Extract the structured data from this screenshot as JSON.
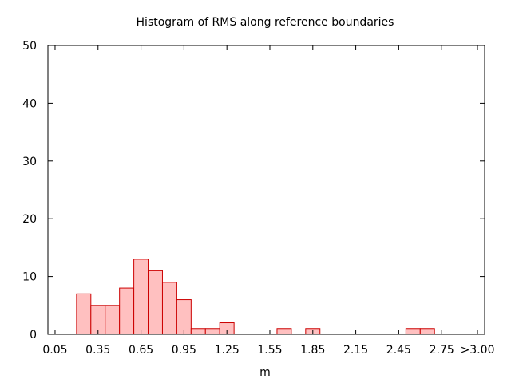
{
  "chart_data": {
    "type": "bar",
    "title": "Histogram of RMS along reference boundaries",
    "xlabel": "m",
    "ylabel": "",
    "xlim": [
      0.0,
      3.05
    ],
    "ylim": [
      0,
      50
    ],
    "bin_width": 0.1,
    "x_ticks": [
      {
        "value": 0.05,
        "label": "0.05"
      },
      {
        "value": 0.35,
        "label": "0.35"
      },
      {
        "value": 0.65,
        "label": "0.65"
      },
      {
        "value": 0.95,
        "label": "0.95"
      },
      {
        "value": 1.25,
        "label": "1.25"
      },
      {
        "value": 1.55,
        "label": "1.55"
      },
      {
        "value": 1.85,
        "label": "1.85"
      },
      {
        "value": 2.15,
        "label": "2.15"
      },
      {
        "value": 2.45,
        "label": "2.45"
      },
      {
        "value": 2.75,
        "label": "2.75"
      },
      {
        "value": 3.0,
        "label": ">3.00"
      }
    ],
    "y_ticks": [
      {
        "value": 0,
        "label": "0"
      },
      {
        "value": 10,
        "label": "10"
      },
      {
        "value": 20,
        "label": "20"
      },
      {
        "value": 30,
        "label": "30"
      },
      {
        "value": 40,
        "label": "40"
      },
      {
        "value": 50,
        "label": "50"
      }
    ],
    "bins": [
      {
        "x": 0.25,
        "count": 7
      },
      {
        "x": 0.35,
        "count": 5
      },
      {
        "x": 0.45,
        "count": 5
      },
      {
        "x": 0.55,
        "count": 8
      },
      {
        "x": 0.65,
        "count": 13
      },
      {
        "x": 0.75,
        "count": 11
      },
      {
        "x": 0.85,
        "count": 9
      },
      {
        "x": 0.95,
        "count": 6
      },
      {
        "x": 1.05,
        "count": 1
      },
      {
        "x": 1.15,
        "count": 1
      },
      {
        "x": 1.25,
        "count": 2
      },
      {
        "x": 1.65,
        "count": 1
      },
      {
        "x": 1.85,
        "count": 1
      },
      {
        "x": 2.55,
        "count": 1
      },
      {
        "x": 2.65,
        "count": 1
      }
    ],
    "bar_fill": "#ffc0c0",
    "bar_stroke": "#cc0000",
    "grid": false,
    "legend": "none"
  }
}
